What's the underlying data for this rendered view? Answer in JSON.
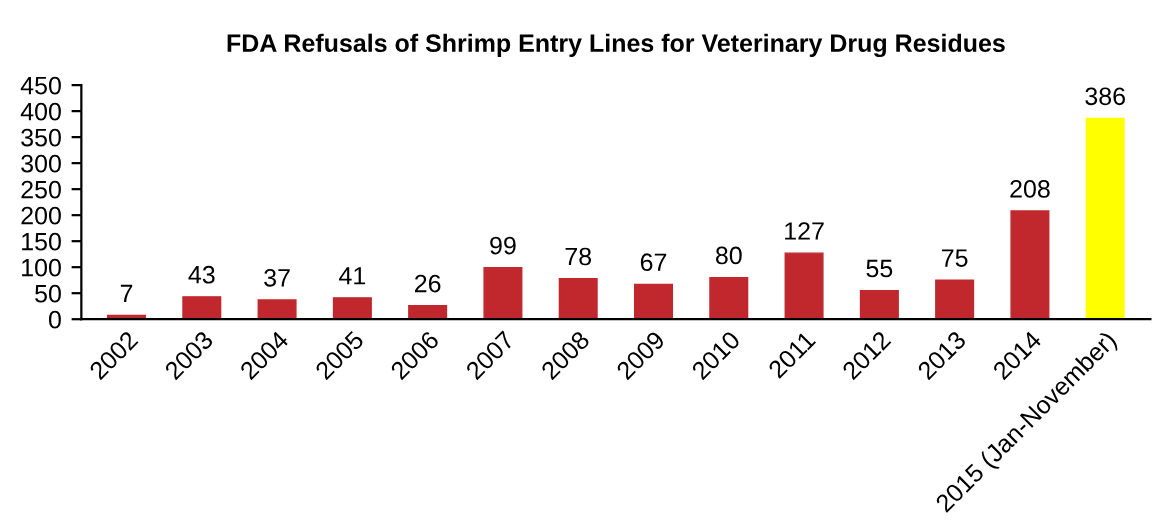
{
  "chart_data": {
    "type": "bar",
    "title": "FDA Refusals of Shrimp Entry Lines for Veterinary Drug Residues",
    "categories": [
      "2002",
      "2003",
      "2004",
      "2005",
      "2006",
      "2007",
      "2008",
      "2009",
      "2010",
      "2011",
      "2012",
      "2013",
      "2014",
      "2015 (Jan-November)"
    ],
    "values": [
      7,
      43,
      37,
      41,
      26,
      99,
      78,
      67,
      80,
      127,
      55,
      75,
      208,
      386
    ],
    "colors": [
      "#c0282d",
      "#c0282d",
      "#c0282d",
      "#c0282d",
      "#c0282d",
      "#c0282d",
      "#c0282d",
      "#c0282d",
      "#c0282d",
      "#c0282d",
      "#c0282d",
      "#c0282d",
      "#c0282d",
      "#ffff00"
    ],
    "ylim": [
      0,
      450
    ],
    "yticks": [
      0,
      50,
      100,
      150,
      200,
      250,
      300,
      350,
      400,
      450
    ],
    "grid": false,
    "data_labels": true
  }
}
